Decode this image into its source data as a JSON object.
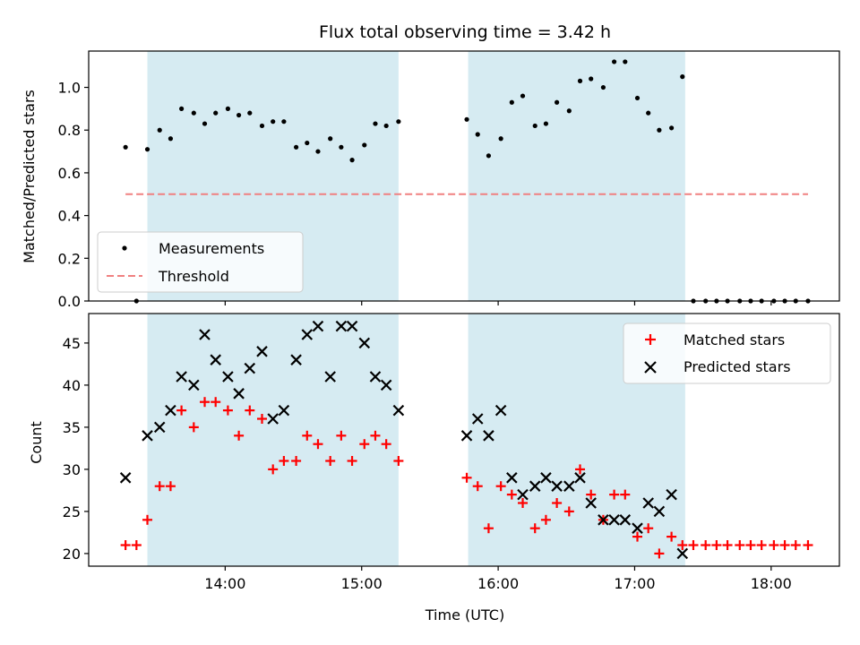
{
  "figure": {
    "title": "Flux total observing time = 3.42 h"
  },
  "chart_data": [
    {
      "type": "scatter",
      "ylabel": "Matched/Predicted stars",
      "ylim": [
        0,
        1.17
      ],
      "xlim_hours": [
        13.0,
        18.5
      ],
      "x_ticks": [
        {
          "label": "14:00",
          "hour": 14
        },
        {
          "label": "15:00",
          "hour": 15
        },
        {
          "label": "16:00",
          "hour": 16
        },
        {
          "label": "17:00",
          "hour": 17
        },
        {
          "label": "18:00",
          "hour": 18
        }
      ],
      "y_ticks": [
        "0.0",
        "0.2",
        "0.4",
        "0.6",
        "0.8",
        "1.0"
      ],
      "shaded_intervals_hours": [
        [
          13.43,
          15.27
        ],
        [
          15.78,
          17.37
        ]
      ],
      "threshold": {
        "name": "Threshold",
        "value": 0.5,
        "x_start": 13.27,
        "x_end": 18.27,
        "color": "#f08080"
      },
      "legend": {
        "placement": "lower-left",
        "entries": [
          "Measurements",
          "Threshold"
        ]
      },
      "series": [
        {
          "name": "Measurements",
          "marker": "dot",
          "color": "#000000",
          "x_hours": [
            13.27,
            13.35,
            13.43,
            13.52,
            13.6,
            13.68,
            13.77,
            13.85,
            13.93,
            14.02,
            14.1,
            14.18,
            14.27,
            14.35,
            14.43,
            14.52,
            14.6,
            14.68,
            14.77,
            14.85,
            14.93,
            15.02,
            15.1,
            15.18,
            15.27,
            15.77,
            15.85,
            15.93,
            16.02,
            16.1,
            16.18,
            16.27,
            16.35,
            16.43,
            16.52,
            16.6,
            16.68,
            16.77,
            16.85,
            16.93,
            17.02,
            17.1,
            17.18,
            17.27,
            17.35,
            17.43,
            17.52,
            17.6,
            17.68,
            17.77,
            17.85,
            17.93,
            18.02,
            18.1,
            18.18,
            18.27
          ],
          "values": [
            0.72,
            0.0,
            0.71,
            0.8,
            0.76,
            0.9,
            0.88,
            0.83,
            0.88,
            0.9,
            0.87,
            0.88,
            0.82,
            0.84,
            0.84,
            0.72,
            0.74,
            0.7,
            0.76,
            0.72,
            0.66,
            0.73,
            0.83,
            0.82,
            0.84,
            0.85,
            0.78,
            0.68,
            0.76,
            0.93,
            0.96,
            0.82,
            0.83,
            0.93,
            0.89,
            1.03,
            1.04,
            1.0,
            1.12,
            1.12,
            0.95,
            0.88,
            0.8,
            0.81,
            1.05,
            0.0,
            0.0,
            0.0,
            0.0,
            0.0,
            0.0,
            0.0,
            0.0,
            0.0,
            0.0,
            0.0
          ]
        }
      ]
    },
    {
      "type": "scatter",
      "xlabel": "Time (UTC)",
      "ylabel": "Count",
      "ylim": [
        18.5,
        48.5
      ],
      "xlim_hours": [
        13.0,
        18.5
      ],
      "x_ticks": [
        {
          "label": "14:00",
          "hour": 14
        },
        {
          "label": "15:00",
          "hour": 15
        },
        {
          "label": "16:00",
          "hour": 16
        },
        {
          "label": "17:00",
          "hour": 17
        },
        {
          "label": "18:00",
          "hour": 18
        }
      ],
      "y_ticks": [
        "20",
        "25",
        "30",
        "35",
        "40",
        "45"
      ],
      "shaded_intervals_hours": [
        [
          13.43,
          15.27
        ],
        [
          15.78,
          17.37
        ]
      ],
      "legend": {
        "placement": "upper-right",
        "entries": [
          "Matched stars",
          "Predicted stars"
        ]
      },
      "series": [
        {
          "name": "Matched stars",
          "marker": "plus",
          "color": "#ff0000",
          "x_hours": [
            13.27,
            13.35,
            13.43,
            13.52,
            13.6,
            13.68,
            13.77,
            13.85,
            13.93,
            14.02,
            14.1,
            14.18,
            14.27,
            14.35,
            14.43,
            14.52,
            14.6,
            14.68,
            14.77,
            14.85,
            14.93,
            15.02,
            15.1,
            15.18,
            15.27,
            15.77,
            15.85,
            15.93,
            16.02,
            16.1,
            16.18,
            16.27,
            16.35,
            16.43,
            16.52,
            16.6,
            16.68,
            16.77,
            16.85,
            16.93,
            17.02,
            17.1,
            17.18,
            17.27,
            17.35,
            17.43,
            17.52,
            17.6,
            17.68,
            17.77,
            17.85,
            17.93,
            18.02,
            18.1,
            18.18,
            18.27
          ],
          "values": [
            21,
            21,
            24,
            28,
            28,
            37,
            35,
            38,
            38,
            37,
            34,
            37,
            36,
            30,
            31,
            31,
            34,
            33,
            31,
            34,
            31,
            33,
            34,
            33,
            31,
            29,
            28,
            23,
            28,
            27,
            26,
            23,
            24,
            26,
            25,
            30,
            27,
            24,
            27,
            27,
            22,
            23,
            20,
            22,
            21,
            21,
            21,
            21,
            21,
            21,
            21,
            21,
            21,
            21,
            21,
            21
          ]
        },
        {
          "name": "Predicted stars",
          "marker": "x",
          "color": "#000000",
          "x_hours": [
            13.27,
            13.43,
            13.52,
            13.6,
            13.68,
            13.77,
            13.85,
            13.93,
            14.02,
            14.1,
            14.18,
            14.27,
            14.35,
            14.43,
            14.52,
            14.6,
            14.68,
            14.77,
            14.85,
            14.93,
            15.02,
            15.1,
            15.18,
            15.27,
            15.77,
            15.85,
            15.93,
            16.02,
            16.1,
            16.18,
            16.27,
            16.35,
            16.43,
            16.52,
            16.6,
            16.68,
            16.77,
            16.85,
            16.93,
            17.02,
            17.1,
            17.18,
            17.27,
            17.35
          ],
          "values": [
            29,
            34,
            35,
            37,
            41,
            40,
            46,
            43,
            41,
            39,
            42,
            44,
            36,
            37,
            43,
            46,
            47,
            41,
            47,
            47,
            45,
            41,
            40,
            37,
            34,
            36,
            34,
            37,
            29,
            27,
            28,
            29,
            28,
            28,
            29,
            26,
            24,
            24,
            24,
            23,
            26,
            25,
            27,
            20
          ]
        }
      ]
    }
  ]
}
